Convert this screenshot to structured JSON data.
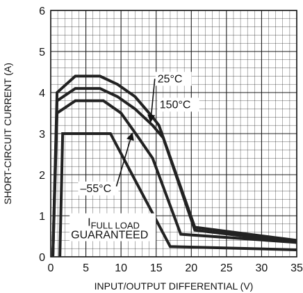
{
  "chart_data": {
    "type": "line",
    "title": "",
    "xlabel": "INPUT/OUTPUT DIFFERENTIAL (V)",
    "ylabel": "SHORT-CIRCUIT CURRENT (A)",
    "xlim": [
      0,
      35
    ],
    "ylim": [
      0,
      6
    ],
    "xticks": [
      0,
      5,
      10,
      15,
      20,
      25,
      30,
      35
    ],
    "yticks": [
      0,
      1,
      2,
      3,
      4,
      5,
      6
    ],
    "grid": true,
    "legend": "none",
    "line_color": "#222222",
    "grid_color": "#111111",
    "series": [
      {
        "name": "25°C",
        "x": [
          0.3,
          0.9,
          3.5,
          7.0,
          9.5,
          12.0,
          14.5,
          15.4,
          20.5,
          35
        ],
        "y": [
          0,
          4.0,
          4.4,
          4.4,
          4.2,
          3.9,
          3.4,
          3.2,
          0.72,
          0.4
        ]
      },
      {
        "name": "150°C",
        "x": [
          0.3,
          0.9,
          3.5,
          7.0,
          9.5,
          12.0,
          14.5,
          16.0,
          20.5,
          35
        ],
        "y": [
          0,
          3.8,
          4.1,
          4.1,
          3.9,
          3.6,
          3.2,
          2.9,
          0.65,
          0.35
        ]
      },
      {
        "name": "–55°C",
        "x": [
          0.3,
          0.9,
          3.5,
          7.5,
          10.0,
          12.5,
          14.5,
          18.5,
          35
        ],
        "y": [
          0,
          3.5,
          3.8,
          3.8,
          3.5,
          2.9,
          2.4,
          0.55,
          0.35
        ]
      },
      {
        "name": "I FULL LOAD GUARANTEED",
        "x": [
          1.3,
          1.7,
          8.5,
          17.0,
          35
        ],
        "y": [
          0,
          3.0,
          3.0,
          0.25,
          0.17
        ]
      }
    ],
    "annotations": [
      {
        "text": "25°C",
        "x": 15.2,
        "y": 3.22,
        "label_x": 15.2,
        "label_y": 4.25
      },
      {
        "text": "150°C",
        "x": 15.7,
        "y": 3.05,
        "label_x": 15.5,
        "label_y": 3.62
      },
      {
        "text": "–55°C",
        "x": 11.8,
        "y": 3.08,
        "label_x": 4.2,
        "label_y": 1.58
      },
      {
        "text_main": "I",
        "text_sub": "FULL LOAD",
        "text_line2": "GUARANTEED",
        "x": 10.0,
        "y": 0.72
      }
    ]
  }
}
